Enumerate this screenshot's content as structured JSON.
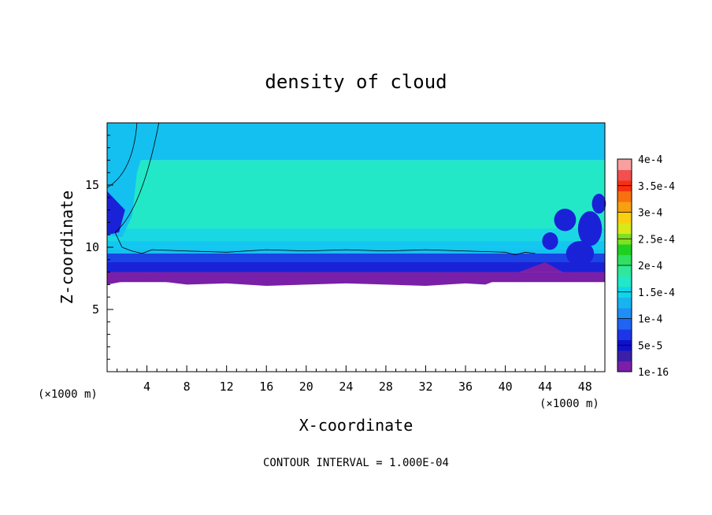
{
  "chart_data": {
    "type": "heatmap",
    "title": "density of cloud",
    "xlabel": "X-coordinate",
    "ylabel": "Z-coordinate",
    "x_unit_label": "(×1000 m)",
    "z_unit_label": "(×1000 m)",
    "xlim": [
      0,
      50
    ],
    "ylim": [
      0,
      20
    ],
    "x_ticks": [
      4,
      8,
      12,
      16,
      20,
      24,
      28,
      32,
      36,
      40,
      44,
      48
    ],
    "y_ticks": [
      5,
      10,
      15
    ],
    "contour_note": "CONTOUR INTERVAL = 1.000E-04",
    "colorbar": {
      "labels": [
        "1e-16",
        "5e-5",
        "1e-4",
        "1.5e-4",
        "2e-4",
        "2.5e-4",
        "3e-4",
        "3.5e-4",
        "4e-4"
      ],
      "colors": [
        "#7a1fa8",
        "#3b1fa8",
        "#1010cc",
        "#1c36e6",
        "#1f64f2",
        "#1e8ff5",
        "#18b4f0",
        "#10d6e8",
        "#22e8c8",
        "#30e89a",
        "#30e060",
        "#20d020",
        "#80e020",
        "#d8e818",
        "#f8d010",
        "#f8a010",
        "#f87010",
        "#f83010",
        "#f05050",
        "#f8a0a0"
      ]
    },
    "field_bands": [
      {
        "z_range": [
          0,
          7.2
        ],
        "level": "none"
      },
      {
        "z_range": [
          7.2,
          8.0
        ],
        "level": "1e-16"
      },
      {
        "z_range": [
          8.0,
          9.5
        ],
        "level": "5e-5"
      },
      {
        "z_range": [
          9.5,
          10.5
        ],
        "level": "1e-4"
      },
      {
        "z_range": [
          10.5,
          17.0
        ],
        "level": "1.5e-4"
      },
      {
        "z_range": [
          17.0,
          20.0
        ],
        "level": "1e-4"
      }
    ]
  }
}
